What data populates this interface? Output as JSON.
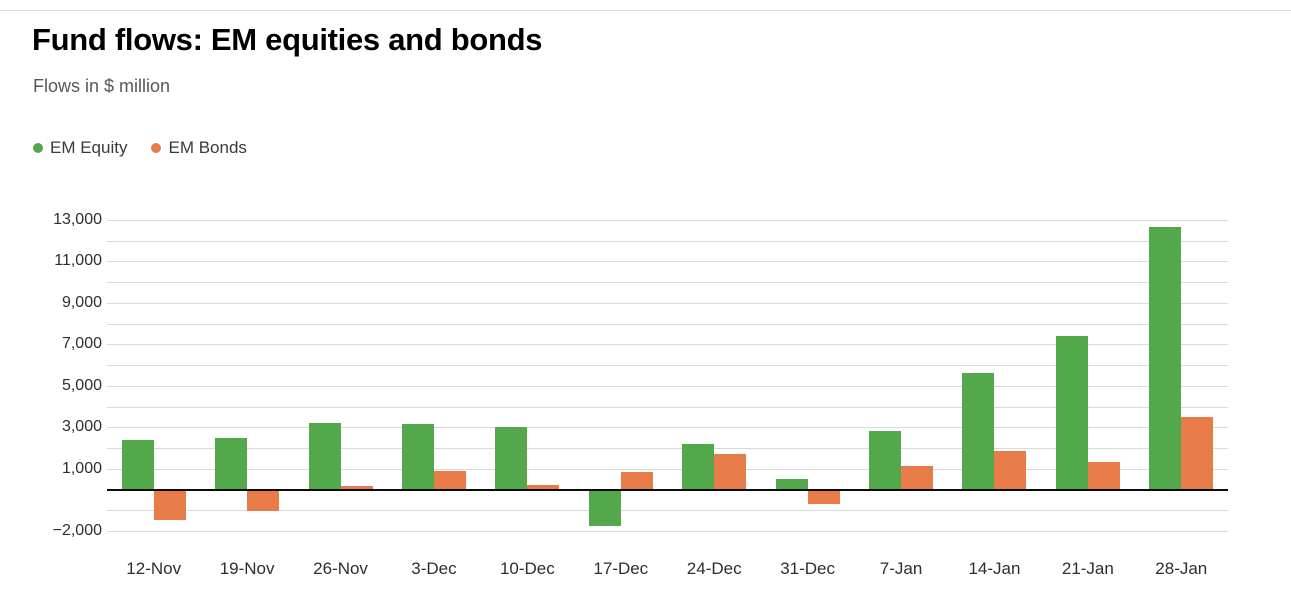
{
  "page": {
    "title": "Fund flows: EM equities and bonds",
    "subtitle": "Flows in $ million"
  },
  "legend": [
    {
      "label": "EM Equity",
      "color": "#52a84a"
    },
    {
      "label": "EM Bonds",
      "color": "#e87c48"
    }
  ],
  "colors": {
    "equity_green": "#52a84a",
    "bonds_orange": "#e87c48",
    "gridline": "#d9d9d9",
    "zero_line": "#0b0b0b",
    "subtitle_text": "#585858",
    "axis_text": "#2e2e2e"
  },
  "chart_data": {
    "type": "bar",
    "title": "Fund flows: EM equities and bonds",
    "subtitle": "Flows in $ million",
    "xlabel": "",
    "ylabel": "Flows in $ million",
    "categories": [
      "12-Nov",
      "19-Nov",
      "26-Nov",
      "3-Dec",
      "10-Dec",
      "17-Dec",
      "24-Dec",
      "31-Dec",
      "7-Jan",
      "14-Jan",
      "21-Jan",
      "28-Jan"
    ],
    "series": [
      {
        "name": "EM Equity",
        "color": "#52a84a",
        "values": [
          2400,
          2500,
          3200,
          3150,
          3000,
          -1750,
          2200,
          500,
          2800,
          5600,
          7400,
          12650
        ]
      },
      {
        "name": "EM Bonds",
        "color": "#e87c48",
        "values": [
          -1450,
          -1050,
          150,
          900,
          200,
          850,
          1700,
          -700,
          1150,
          1850,
          1350,
          3500
        ]
      }
    ],
    "ylim": [
      -2000,
      13000
    ],
    "grid": true,
    "grid_interval": 1000,
    "y_ticks": [
      {
        "value": 13000,
        "label": "13,000"
      },
      {
        "value": 11000,
        "label": "11,000"
      },
      {
        "value": 9000,
        "label": "9,000"
      },
      {
        "value": 7000,
        "label": "7,000"
      },
      {
        "value": 5000,
        "label": "5,000"
      },
      {
        "value": 3000,
        "label": "3,000"
      },
      {
        "value": 1000,
        "label": "1,000"
      },
      {
        "value": -2000,
        "label": "−2,000"
      }
    ],
    "legend_position": "top-left",
    "bar_grouping": "grouped"
  }
}
